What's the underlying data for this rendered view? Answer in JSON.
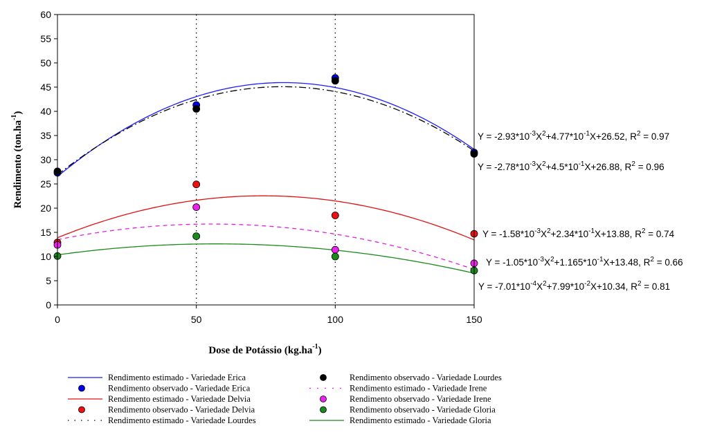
{
  "chart_data": {
    "type": "scatter",
    "xlabel": "Dose de Potássio (kg.ha",
    "xlabel_sup": "-1",
    "xlabel_end": ")",
    "ylabel": "Rendimento (ton.ha",
    "ylabel_sup": "-1",
    "ylabel_end": ")",
    "xlim": [
      0,
      150
    ],
    "ylim": [
      0,
      60
    ],
    "xticks": [
      "0",
      "50",
      "100",
      "150"
    ],
    "yticks": [
      "0",
      "5",
      "10",
      "15",
      "20",
      "25",
      "30",
      "35",
      "40",
      "45",
      "50",
      "55",
      "60"
    ],
    "vertical_dotted_lines_at": [
      50,
      100
    ],
    "series": [
      {
        "key": "erica",
        "name_est": "Rendimento estimado - Variedade Erica",
        "name_obs": "Rendimento observado - Variedade Erica",
        "curve_color": "#1a1aff",
        "curve_style": "solid",
        "point_color": "#0000e6",
        "coef": [
          -0.00293,
          0.477,
          26.52
        ],
        "observed": [
          [
            0,
            27.3
          ],
          [
            50,
            41.3
          ],
          [
            100,
            46.9
          ],
          [
            150,
            31.5
          ]
        ],
        "equation": [
          "Y = -2.93*10",
          "-3",
          "X",
          "2",
          "+4.77*10",
          "-1",
          "X+26.52, R",
          "2",
          " = 0.97"
        ]
      },
      {
        "key": "lourdes",
        "name_est": "Rendimento estimado - Variedade Lourdes",
        "name_obs": "Rendimento observado - Variedade Lourdes",
        "curve_color": "#000000",
        "curve_style": "dashdot",
        "point_color": "#000000",
        "coef": [
          -0.00278,
          0.45,
          26.88
        ],
        "observed": [
          [
            0,
            27.6
          ],
          [
            50,
            40.5
          ],
          [
            100,
            46.3
          ],
          [
            150,
            31.2
          ]
        ],
        "equation": [
          "Y = -2.78*10",
          "-3",
          "X",
          "2",
          "+4.5*10",
          "-1",
          "X+26.88, R",
          "2",
          " = 0.96"
        ]
      },
      {
        "key": "delvia",
        "name_est": "Rendimento estimado - Variedade Delvia",
        "name_obs": "Rendimento observado - Variedade Delvia",
        "curve_color": "#e01010",
        "curve_style": "solid",
        "point_color": "#ee1111",
        "coef": [
          -0.00158,
          0.234,
          13.88
        ],
        "observed": [
          [
            0,
            12.9
          ],
          [
            50,
            24.9
          ],
          [
            100,
            18.5
          ],
          [
            150,
            14.7
          ]
        ],
        "equation": [
          "Y = -1.58*10",
          "-3",
          "X",
          "2",
          "+2.34*10",
          "-1",
          "X+13.88, R",
          "2",
          " = 0.74"
        ]
      },
      {
        "key": "irene",
        "name_est": "Rendimento estimado - Variedade Irene",
        "name_obs": "Rendimento observado - Variedade Irene",
        "curve_color": "#e020e0",
        "curve_style": "dashed",
        "point_color": "#ee22ee",
        "coef": [
          -0.00105,
          0.1165,
          13.48
        ],
        "observed": [
          [
            0,
            12.4
          ],
          [
            50,
            20.2
          ],
          [
            100,
            11.4
          ],
          [
            150,
            8.6
          ]
        ],
        "equation": [
          "Y = -1.05*10",
          "-3",
          "X",
          "2",
          "+1.165*10",
          "-1",
          "X+13.48, R",
          "2",
          " = 0.66"
        ]
      },
      {
        "key": "gloria",
        "name_est": "Rendimento estimado - Variedade Gloria",
        "name_obs": "Rendimento observado - Variedade Gloria",
        "curve_color": "#1a8a1a",
        "curve_style": "solid",
        "point_color": "#1a8a1a",
        "coef": [
          -0.000701,
          0.0799,
          10.34
        ],
        "observed": [
          [
            0,
            10.1
          ],
          [
            50,
            14.2
          ],
          [
            100,
            10.0
          ],
          [
            150,
            7.1
          ]
        ],
        "equation": [
          "Y = -7.01*10",
          "-4",
          "X",
          "2",
          "+7.99*10",
          "-2",
          "X+10.34, R",
          "2",
          " = 0.81"
        ]
      }
    ],
    "legend": [
      {
        "label": "Rendimento estimado - Variedade Erica",
        "kind": "line",
        "series": "erica"
      },
      {
        "label": "Rendimento observado - Variedade Lourdes",
        "kind": "point",
        "series": "lourdes"
      },
      {
        "label": "Rendimento observado - Variedade Erica",
        "kind": "point",
        "series": "erica"
      },
      {
        "label": "Rendimento estimado - Variedade Irene",
        "kind": "line",
        "series": "irene"
      },
      {
        "label": "Rendimento estimado - Variedade Delvia",
        "kind": "line",
        "series": "delvia"
      },
      {
        "label": "Rendimento observado - Variedade Irene",
        "kind": "point",
        "series": "irene"
      },
      {
        "label": "Rendimento observado - Variedade Delvia",
        "kind": "point",
        "series": "delvia"
      },
      {
        "label": "Rendimento observado - Variedade Gloria",
        "kind": "point",
        "series": "gloria"
      },
      {
        "label": "Rendimento estimado - Variedade Lourdes",
        "kind": "dots",
        "series": "lourdes"
      },
      {
        "label": "Rendimento estimado - Variedade Gloria",
        "kind": "line",
        "series": "gloria"
      }
    ]
  }
}
